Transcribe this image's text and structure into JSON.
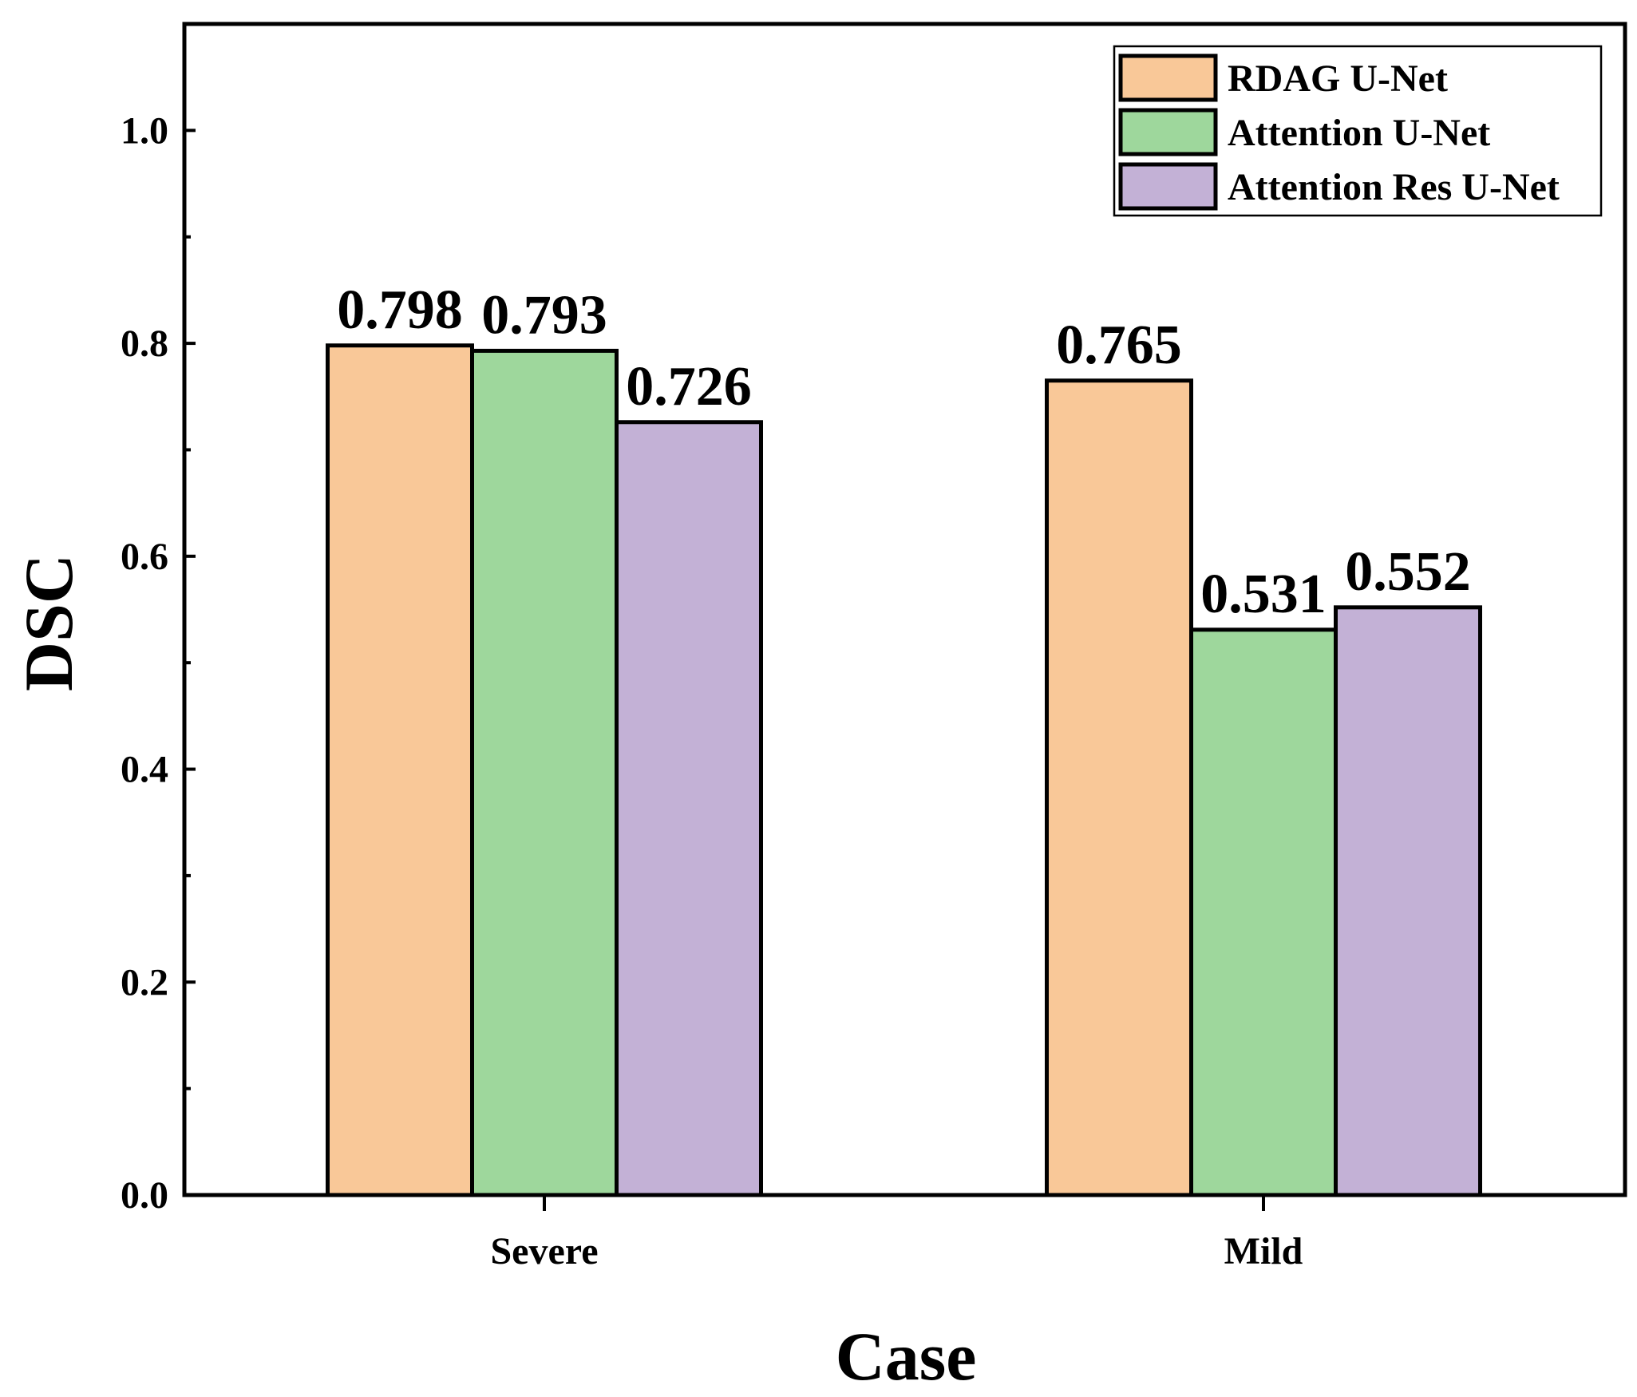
{
  "chart_data": {
    "type": "bar",
    "title": "",
    "xlabel": "Case",
    "ylabel": "DSC",
    "categories": [
      "Severe",
      "Mild"
    ],
    "series": [
      {
        "name": "RDAG U-Net",
        "color": "#F9C898",
        "values": [
          0.798,
          0.765
        ]
      },
      {
        "name": "Attention U-Net",
        "color": "#9ED79C",
        "values": [
          0.793,
          0.531
        ]
      },
      {
        "name": "Attention Res U-Net",
        "color": "#C3B1D6",
        "values": [
          0.726,
          0.552
        ]
      }
    ],
    "value_labels": [
      [
        "0.798",
        "0.765"
      ],
      [
        "0.793",
        "0.531"
      ],
      [
        "0.726",
        "0.552"
      ]
    ],
    "ylim": [
      0,
      1.1
    ],
    "yticks": [
      0.0,
      0.2,
      0.4,
      0.6,
      0.8,
      1.0
    ],
    "ytick_labels": [
      "0.0",
      "0.2",
      "0.4",
      "0.6",
      "0.8",
      "1.0"
    ],
    "grid": false,
    "legend_position": "top-right"
  }
}
